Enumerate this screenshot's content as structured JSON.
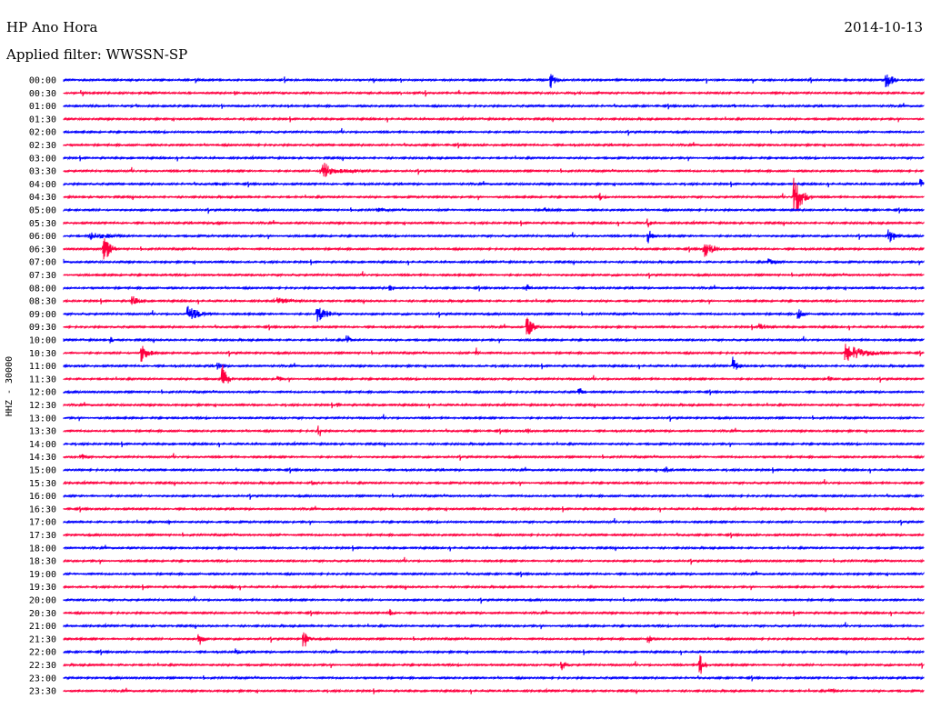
{
  "header": {
    "station": "HP Ano Hora",
    "filter": "Applied filter: WWSSN-SP",
    "date": "2014-10-13"
  },
  "chart_data": {
    "type": "helicorder",
    "ylabel": "HHZ - 30000",
    "colors": {
      "even": "#0000ff",
      "odd": "#ff0040"
    },
    "rows": [
      "00:00",
      "00:30",
      "01:00",
      "01:30",
      "02:00",
      "02:30",
      "03:00",
      "03:30",
      "04:00",
      "04:30",
      "05:00",
      "05:30",
      "06:00",
      "06:30",
      "07:00",
      "07:30",
      "08:00",
      "08:30",
      "09:00",
      "09:30",
      "10:00",
      "10:30",
      "11:00",
      "11:30",
      "12:00",
      "12:30",
      "13:00",
      "13:30",
      "14:00",
      "14:30",
      "15:00",
      "15:30",
      "16:00",
      "16:30",
      "17:00",
      "17:30",
      "18:00",
      "18:30",
      "19:00",
      "19:30",
      "20:00",
      "20:30",
      "21:00",
      "21:30",
      "22:00",
      "22:30",
      "23:00",
      "23:30"
    ],
    "events": [
      {
        "row": 0,
        "t": 0.567,
        "amp": 9,
        "dur": 0.012
      },
      {
        "row": 0,
        "t": 0.957,
        "amp": 11,
        "dur": 0.015
      },
      {
        "row": 1,
        "t": 0.1,
        "amp": 1.5,
        "dur": 0.01
      },
      {
        "row": 2,
        "t": 0.78,
        "amp": 2,
        "dur": 0.01
      },
      {
        "row": 7,
        "t": 0.3,
        "amp": 5,
        "dur": 0.08
      },
      {
        "row": 7,
        "t": 0.303,
        "amp": 14,
        "dur": 0.014
      },
      {
        "row": 8,
        "t": 0.178,
        "amp": 2,
        "dur": 0.03
      },
      {
        "row": 8,
        "t": 0.997,
        "amp": 6,
        "dur": 0.008
      },
      {
        "row": 9,
        "t": 0.85,
        "amp": 24,
        "dur": 0.02
      },
      {
        "row": 9,
        "t": 0.624,
        "amp": 5,
        "dur": 0.004
      },
      {
        "row": 10,
        "t": 0.365,
        "amp": 3,
        "dur": 0.03
      },
      {
        "row": 10,
        "t": 0.56,
        "amp": 2.5,
        "dur": 0.025
      },
      {
        "row": 11,
        "t": 0.175,
        "amp": 3,
        "dur": 0.02
      },
      {
        "row": 11,
        "t": 0.68,
        "amp": 6,
        "dur": 0.006
      },
      {
        "row": 12,
        "t": 0.03,
        "amp": 5,
        "dur": 0.06
      },
      {
        "row": 12,
        "t": 0.68,
        "amp": 9,
        "dur": 0.01
      },
      {
        "row": 12,
        "t": 0.96,
        "amp": 10,
        "dur": 0.015
      },
      {
        "row": 13,
        "t": 0.047,
        "amp": 16,
        "dur": 0.015
      },
      {
        "row": 13,
        "t": 0.745,
        "amp": 10,
        "dur": 0.025
      },
      {
        "row": 14,
        "t": 0.82,
        "amp": 4,
        "dur": 0.03
      },
      {
        "row": 16,
        "t": 0.38,
        "amp": 4,
        "dur": 0.01
      },
      {
        "row": 16,
        "t": 0.54,
        "amp": 4,
        "dur": 0.01
      },
      {
        "row": 17,
        "t": 0.08,
        "amp": 6,
        "dur": 0.02
      },
      {
        "row": 17,
        "t": 0.25,
        "amp": 4,
        "dur": 0.04
      },
      {
        "row": 18,
        "t": 0.145,
        "amp": 9,
        "dur": 0.03
      },
      {
        "row": 18,
        "t": 0.295,
        "amp": 9,
        "dur": 0.03
      },
      {
        "row": 18,
        "t": 0.855,
        "amp": 7,
        "dur": 0.01
      },
      {
        "row": 19,
        "t": 0.54,
        "amp": 12,
        "dur": 0.015
      },
      {
        "row": 19,
        "t": 0.81,
        "amp": 4,
        "dur": 0.03
      },
      {
        "row": 20,
        "t": 0.055,
        "amp": 4,
        "dur": 0.01
      },
      {
        "row": 20,
        "t": 0.33,
        "amp": 6,
        "dur": 0.01
      },
      {
        "row": 21,
        "t": 0.09,
        "amp": 12,
        "dur": 0.02
      },
      {
        "row": 21,
        "t": 0.48,
        "amp": 7,
        "dur": 0.006
      },
      {
        "row": 21,
        "t": 0.91,
        "amp": 11,
        "dur": 0.05
      },
      {
        "row": 22,
        "t": 0.18,
        "amp": 5,
        "dur": 0.01
      },
      {
        "row": 22,
        "t": 0.78,
        "amp": 11,
        "dur": 0.01
      },
      {
        "row": 23,
        "t": 0.185,
        "amp": 16,
        "dur": 0.012
      },
      {
        "row": 23,
        "t": 0.25,
        "amp": 4,
        "dur": 0.01
      },
      {
        "row": 23,
        "t": 0.89,
        "amp": 4,
        "dur": 0.01
      },
      {
        "row": 24,
        "t": 0.6,
        "amp": 5,
        "dur": 0.015
      },
      {
        "row": 25,
        "t": 0.32,
        "amp": 3,
        "dur": 0.004
      },
      {
        "row": 27,
        "t": 0.297,
        "amp": 9,
        "dur": 0.006
      },
      {
        "row": 27,
        "t": 0.54,
        "amp": 3,
        "dur": 0.02
      },
      {
        "row": 29,
        "t": 0.02,
        "amp": 5,
        "dur": 0.01
      },
      {
        "row": 30,
        "t": 0.7,
        "amp": 5,
        "dur": 0.012
      },
      {
        "row": 31,
        "t": 0.29,
        "amp": 3,
        "dur": 0.02
      },
      {
        "row": 34,
        "t": 0.123,
        "amp": 3,
        "dur": 0.004
      },
      {
        "row": 39,
        "t": 0.195,
        "amp": 3,
        "dur": 0.01
      },
      {
        "row": 41,
        "t": 0.38,
        "amp": 5,
        "dur": 0.008
      },
      {
        "row": 42,
        "t": 0.758,
        "amp": 3,
        "dur": 0.008
      },
      {
        "row": 43,
        "t": 0.158,
        "amp": 8,
        "dur": 0.01
      },
      {
        "row": 43,
        "t": 0.28,
        "amp": 12,
        "dur": 0.01
      },
      {
        "row": 43,
        "t": 0.68,
        "amp": 6,
        "dur": 0.008
      },
      {
        "row": 44,
        "t": 0.2,
        "amp": 4,
        "dur": 0.012
      },
      {
        "row": 45,
        "t": 0.58,
        "amp": 8,
        "dur": 0.008
      },
      {
        "row": 45,
        "t": 0.74,
        "amp": 12,
        "dur": 0.012
      },
      {
        "row": 47,
        "t": 0.89,
        "amp": 3,
        "dur": 0.02
      }
    ]
  }
}
